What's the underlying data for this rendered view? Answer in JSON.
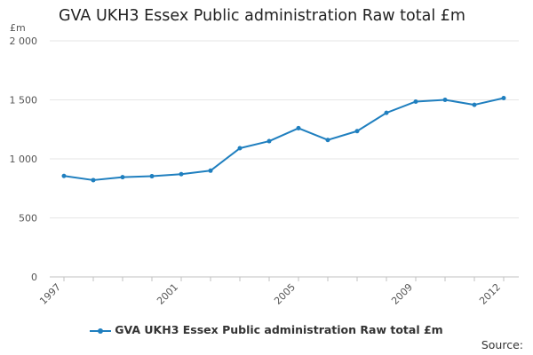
{
  "chart_data": {
    "type": "line",
    "title": "GVA UKH3 Essex Public administration Raw total £m",
    "ylabel": "£m",
    "xlabel": "",
    "x": [
      1997,
      1998,
      1999,
      2000,
      2001,
      2002,
      2003,
      2004,
      2005,
      2006,
      2007,
      2008,
      2009,
      2010,
      2011,
      2012
    ],
    "x_tick_labels": [
      "1997",
      "2001",
      "2005",
      "2009",
      "2012"
    ],
    "y_tick_labels": [
      "0",
      "500",
      "1 000",
      "1 500",
      "2 000"
    ],
    "ylim": [
      0,
      2000
    ],
    "grid": true,
    "legend_position": "bottom",
    "series": [
      {
        "name": "GVA UKH3 Essex Public administration Raw total £m",
        "color": "#1f7fbf",
        "values": [
          855,
          820,
          845,
          853,
          870,
          900,
          1090,
          1150,
          1260,
          1160,
          1235,
          1390,
          1485,
          1500,
          1458,
          1515
        ]
      }
    ]
  },
  "source_label": "Source:"
}
